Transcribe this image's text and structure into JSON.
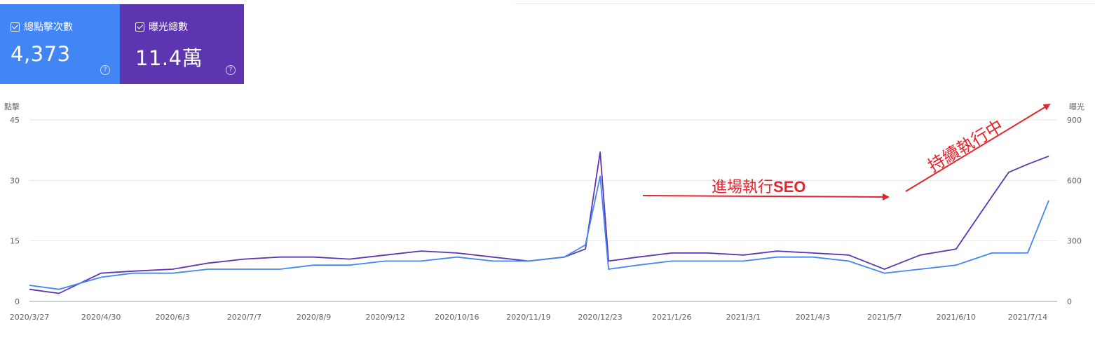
{
  "metrics": {
    "clicks": {
      "label": "總點擊次數",
      "value": "4,373",
      "color": "#4285f4",
      "help": "?"
    },
    "impressions": {
      "label": "曝光總數",
      "value": "11.4萬",
      "color": "#5e35b1",
      "help": "?"
    }
  },
  "chart_data": {
    "type": "line",
    "y_left_label": "點擊",
    "y_right_label": "曝光",
    "y_left_ticks": [
      "45",
      "30",
      "15",
      "0"
    ],
    "y_right_ticks": [
      "900",
      "600",
      "300",
      "0"
    ],
    "y_left_range": [
      0,
      45
    ],
    "y_right_range": [
      0,
      900
    ],
    "x_tick_labels": [
      "2020/3/27",
      "2020/4/30",
      "2020/6/3",
      "2020/7/7",
      "2020/8/9",
      "2020/9/12",
      "2020/10/16",
      "2020/11/19",
      "2020/12/23",
      "2021/1/26",
      "2021/3/1",
      "2021/4/3",
      "2021/5/7",
      "2021/6/10",
      "2021/7/14"
    ],
    "grid": true,
    "series": [
      {
        "name": "總點擊次數",
        "axis": "left",
        "color": "#4285f4",
        "x": [
          "2020/3/27",
          "2020/4/10",
          "2020/4/30",
          "2020/5/15",
          "2020/6/3",
          "2020/6/20",
          "2020/7/7",
          "2020/7/24",
          "2020/8/9",
          "2020/8/26",
          "2020/9/12",
          "2020/9/29",
          "2020/10/16",
          "2020/11/2",
          "2020/11/19",
          "2020/12/6",
          "2020/12/16",
          "2020/12/23",
          "2020/12/27",
          "2021/1/10",
          "2021/1/26",
          "2021/2/12",
          "2021/3/1",
          "2021/3/17",
          "2021/4/3",
          "2021/4/20",
          "2021/5/7",
          "2021/5/24",
          "2021/6/10",
          "2021/6/27",
          "2021/7/5",
          "2021/7/14",
          "2021/7/24"
        ],
        "y": [
          4,
          3,
          6,
          7,
          7,
          8,
          8,
          8,
          9,
          9,
          10,
          10,
          11,
          10,
          10,
          11,
          14,
          31,
          8,
          9,
          10,
          10,
          10,
          11,
          11,
          10,
          7,
          8,
          9,
          12,
          12,
          12,
          25
        ]
      },
      {
        "name": "曝光總數",
        "axis": "right",
        "color": "#5e35b1",
        "x": [
          "2020/3/27",
          "2020/4/10",
          "2020/4/30",
          "2020/5/15",
          "2020/6/3",
          "2020/6/20",
          "2020/7/7",
          "2020/7/24",
          "2020/8/9",
          "2020/8/26",
          "2020/9/12",
          "2020/9/29",
          "2020/10/16",
          "2020/11/2",
          "2020/11/19",
          "2020/12/6",
          "2020/12/16",
          "2020/12/23",
          "2020/12/27",
          "2021/1/10",
          "2021/1/26",
          "2021/2/12",
          "2021/3/1",
          "2021/3/17",
          "2021/4/3",
          "2021/4/20",
          "2021/5/7",
          "2021/5/24",
          "2021/6/10",
          "2021/6/27",
          "2021/7/5",
          "2021/7/14",
          "2021/7/24"
        ],
        "y": [
          60,
          40,
          140,
          150,
          160,
          190,
          210,
          220,
          220,
          210,
          230,
          250,
          240,
          220,
          200,
          220,
          260,
          740,
          200,
          220,
          240,
          240,
          230,
          250,
          240,
          230,
          160,
          230,
          260,
          520,
          640,
          680,
          720
        ]
      }
    ],
    "annotations": [
      {
        "text": "進場執行",
        "strong": "SEO"
      },
      {
        "text": "持續執行中"
      }
    ]
  }
}
